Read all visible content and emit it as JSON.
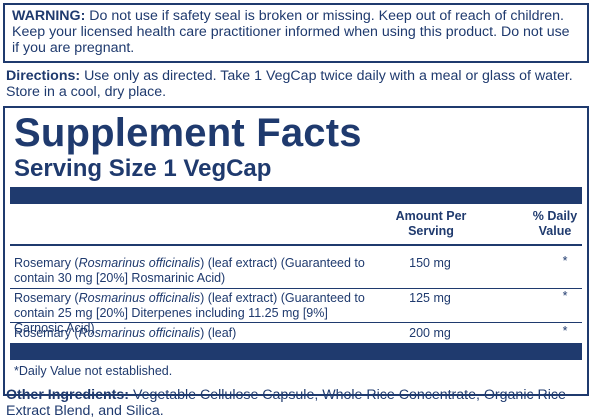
{
  "warning": {
    "label": "WARNING:",
    "text": "Do not use if safety seal is broken or missing. Keep out of reach of children. Keep your licensed health care practitioner informed when using this product. Do not use if you are pregnant."
  },
  "directions": {
    "label": "Directions:",
    "text": "Use only as directed. Take 1 VegCap twice daily with a meal or glass of water. Store in a cool, dry place."
  },
  "facts": {
    "title": "Supplement Facts",
    "serving": "Serving Size 1 VegCap",
    "col_amount": "Amount Per Serving",
    "col_dv": "% Daily Value",
    "rows": [
      {
        "pre": "Rosemary (",
        "latin": "Rosmarinus officinalis",
        "post": ") (leaf extract) (Guaranteed to contain 30 mg [20%] Rosmarinic Acid)",
        "amount": "150 mg",
        "dv": "*"
      },
      {
        "pre": "Rosemary (",
        "latin": "Rosmarinus officinalis",
        "post": ") (leaf extract) (Guaranteed to contain 25 mg [20%] Diterpenes including 11.25 mg [9%] Carnosic Acid)",
        "amount": "125 mg",
        "dv": "*"
      },
      {
        "pre": "Rosemary (",
        "latin": "Rosmarinus officinalis",
        "post": ") (leaf)",
        "amount": "200 mg",
        "dv": "*"
      }
    ],
    "footnote": "*Daily Value not established."
  },
  "other": {
    "label": "Other Ingredients:",
    "text": "Vegetable Cellulose Capsule, Whole Rice Concentrate, Organic Rice Extract Blend, and Silica."
  },
  "colors": {
    "ink": "#1f3a6e"
  }
}
